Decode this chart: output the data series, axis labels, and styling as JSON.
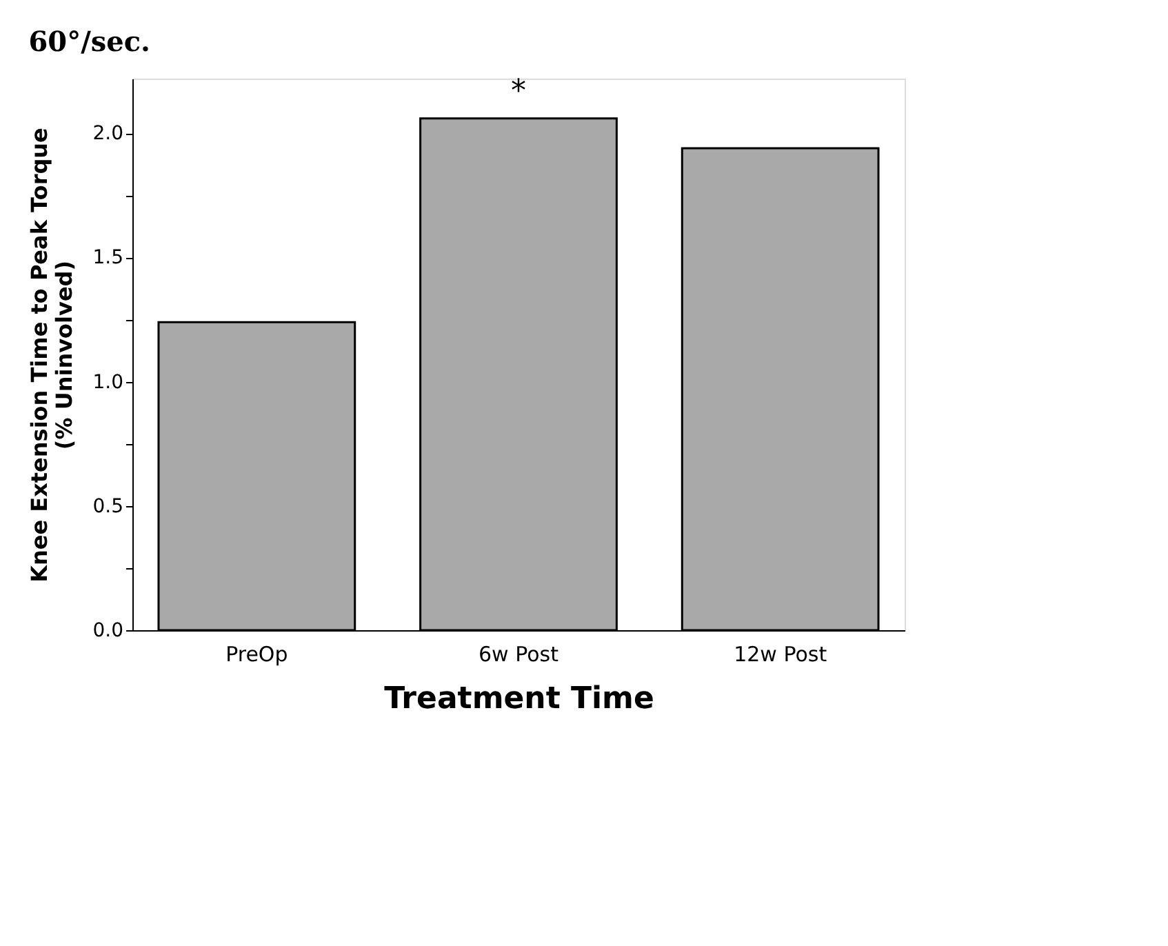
{
  "chart_data": {
    "type": "bar",
    "title": "60°/sec.",
    "xlabel": "Treatment Time",
    "ylabel": "Knee Extension Time to Peak Torque",
    "subtitle": "(% Uninvolved)",
    "categories": [
      "PreOp",
      "6w Post",
      "12w Post"
    ],
    "values": [
      1.24,
      2.06,
      1.94
    ],
    "color": "#a9a9a9",
    "ylim": [
      0,
      2.22
    ],
    "yticks": [
      {
        "value": 0,
        "label": "0.0"
      },
      {
        "value": 0.25,
        "label": null
      },
      0.5,
      {
        "value": 0.75,
        "label": null
      },
      {
        "value": 1,
        "label": "1.0"
      },
      {
        "value": 1.25,
        "label": null
      },
      1.5,
      {
        "value": 1.75,
        "label": null
      },
      {
        "value": 2,
        "label": "2.0"
      }
    ],
    "annotations": [
      "*"
    ],
    "grid": false
  }
}
